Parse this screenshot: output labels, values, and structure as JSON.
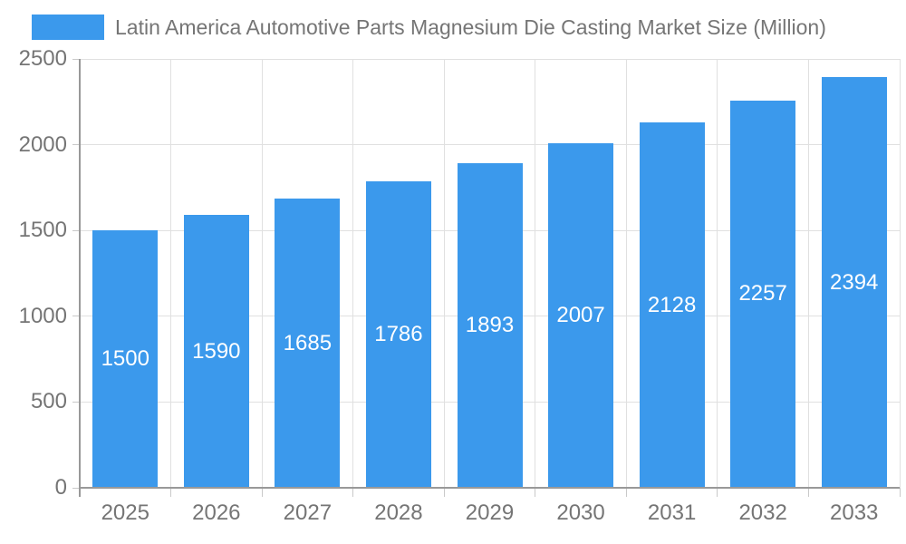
{
  "chart_data": {
    "type": "bar",
    "title": "Latin America Automotive Parts Magnesium Die Casting Market Size (Million)",
    "categories": [
      "2025",
      "2026",
      "2027",
      "2028",
      "2029",
      "2030",
      "2031",
      "2032",
      "2033"
    ],
    "values": [
      1500,
      1590,
      1685,
      1786,
      1893,
      2007,
      2128,
      2257,
      2394
    ],
    "series_name": "Latin America Automotive Parts Magnesium Die Casting Market Size (Million)",
    "xlabel": "",
    "ylabel": "",
    "ylim": [
      0,
      2500
    ],
    "yticks": [
      0,
      500,
      1000,
      1500,
      2000,
      2500
    ],
    "grid": true,
    "legend_position": "top-left",
    "value_label_position": "inside-center"
  },
  "colors": {
    "bar": "#3b99ec",
    "title_text": "#757575",
    "axis_label_text": "#757575",
    "value_label_text": "#ffffff",
    "axis_line": "#999999",
    "gridline": "#e0e0e0",
    "tick": "#c9c9c9"
  }
}
